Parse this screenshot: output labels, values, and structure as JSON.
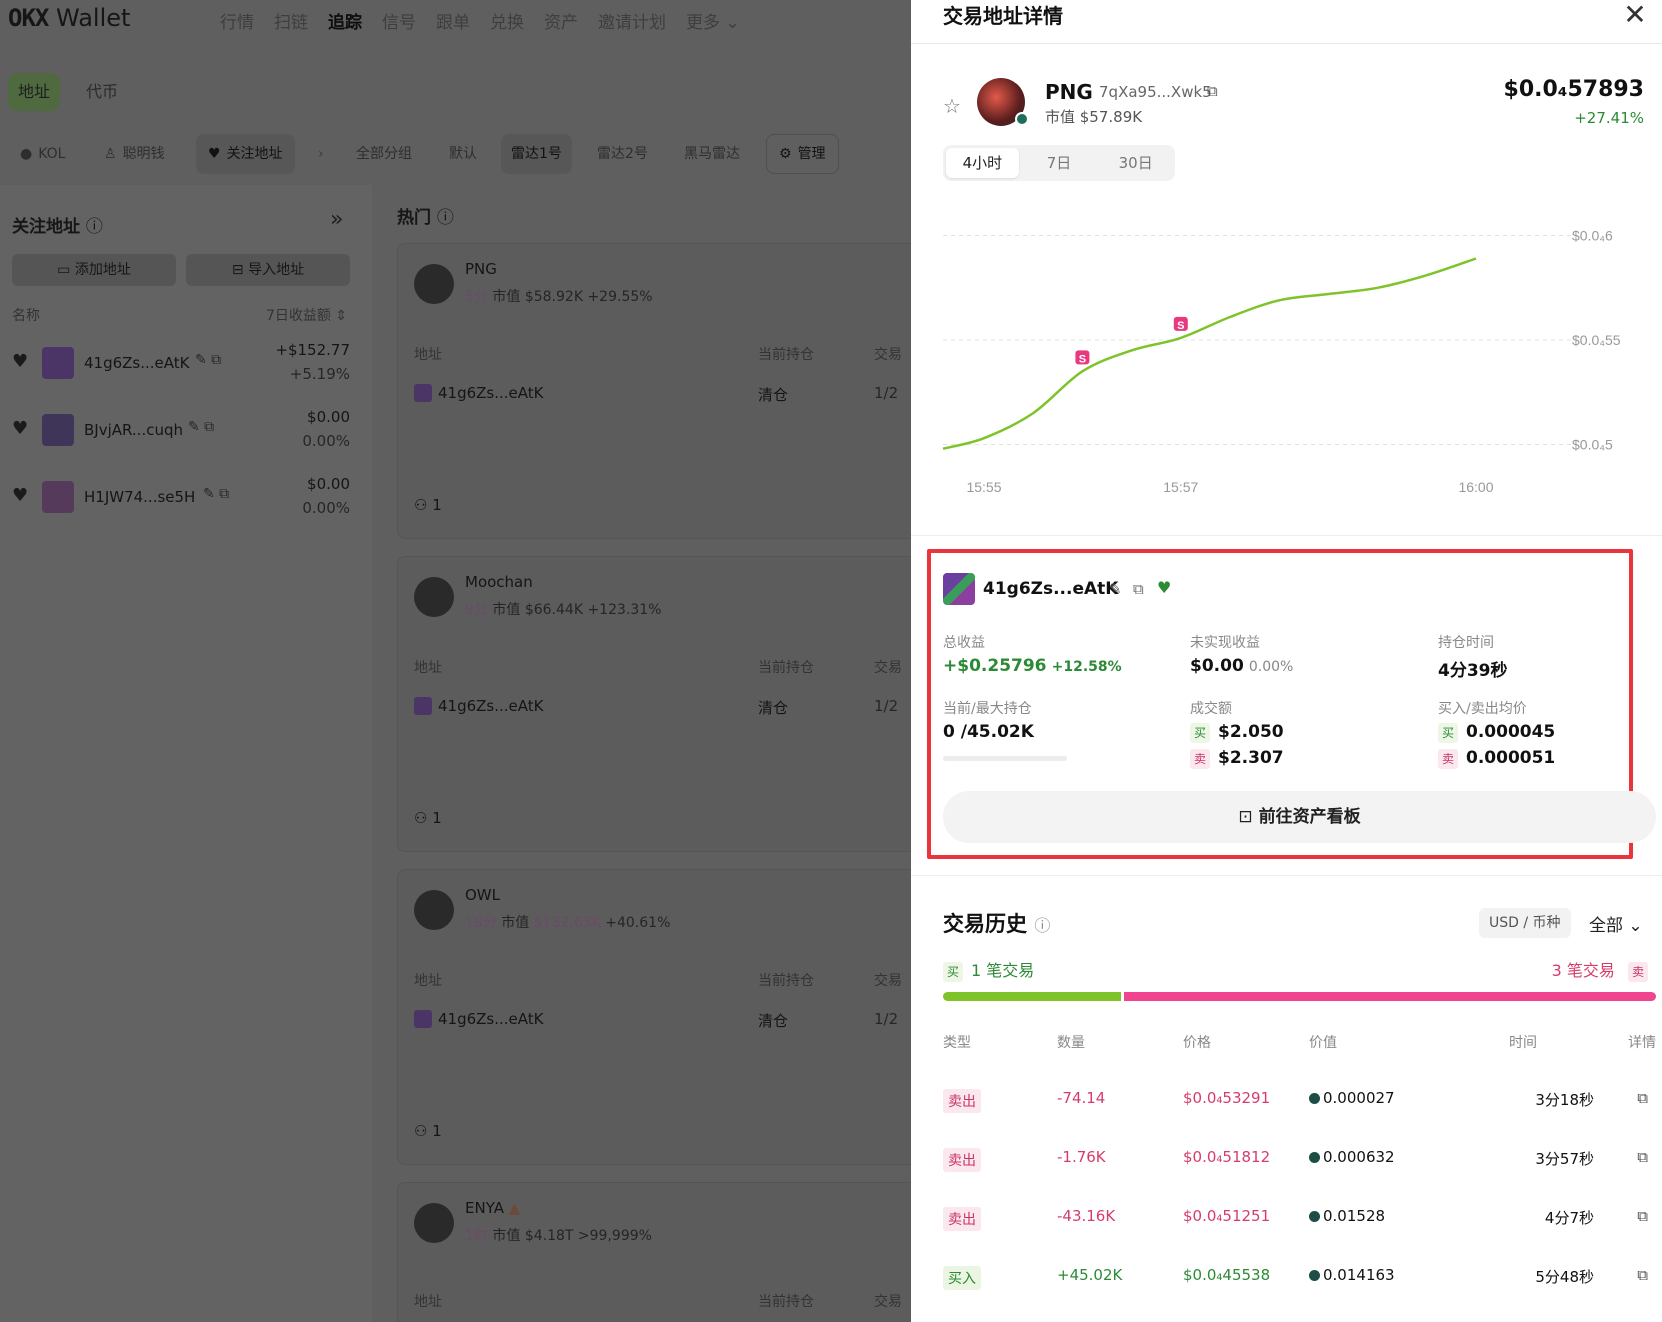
{
  "brand": {
    "logo_mark": "OKX",
    "logo_text": "Wallet"
  },
  "nav": {
    "items": [
      "行情",
      "扫链",
      "追踪",
      "信号",
      "跟单",
      "兑换",
      "资产",
      "邀请计划",
      "更多"
    ],
    "active": "追踪"
  },
  "tabs": {
    "address": "地址",
    "token": "代币"
  },
  "filters": {
    "kol": "KOL",
    "smart": "聪明钱",
    "watch": "关注地址",
    "all_groups": "全部分组",
    "default": "默认",
    "radar1": "雷达1号",
    "radar2": "雷达2号",
    "dark_horse": "黑马雷达",
    "manage": "管理"
  },
  "sidebar": {
    "title": "关注地址",
    "add": "添加地址",
    "import": "导入地址",
    "col_name": "名称",
    "col_profit": "7日收益额",
    "items": [
      {
        "addr": "41g6Zs...eAtK",
        "pnl": "+$152.77",
        "pct": "+5.19%"
      },
      {
        "addr": "BJvjAR...cuqh",
        "pnl": "$0.00",
        "pct": "0.00%"
      },
      {
        "addr": "H1JW74...se5H",
        "pnl": "$0.00",
        "pct": "0.00%"
      }
    ]
  },
  "hot": {
    "title": "热门",
    "col_addr": "地址",
    "col_hold": "当前持仓",
    "col_trade": "交易",
    "cards": [
      {
        "name": "PNG",
        "age": "5分",
        "mcap_label": "市值",
        "mcap": "$58.92K",
        "chg": "+29.55%",
        "addr": "41g6Zs...eAtK",
        "hold": "清仓",
        "trade": "1/2",
        "count": "1"
      },
      {
        "name": "Moochan",
        "age": "9分",
        "mcap_label": "市值",
        "mcap": "$66.44K",
        "chg": "+123.31%",
        "addr": "41g6Zs...eAtK",
        "hold": "清仓",
        "trade": "1/2",
        "count": "1"
      },
      {
        "name": "OWL",
        "age": "18分",
        "mcap_label": "市值",
        "mcap": "$132.63K",
        "chg": "+40.61%",
        "addr": "41g6Zs...eAtK",
        "hold": "清仓",
        "trade": "1/2",
        "count": "1"
      },
      {
        "name": "ENYA",
        "age": "1时",
        "mcap_label": "市值",
        "mcap": "$4.18T",
        "chg": ">99,999%",
        "addr": "",
        "hold": "",
        "trade": "",
        "count": ""
      }
    ]
  },
  "panel": {
    "title": "交易地址详情",
    "token": {
      "symbol": "PNG",
      "address": "7qXa95...Xwk5",
      "mcap": "市值 $57.89K",
      "price": "$0.0₄57893",
      "change": "+27.41%"
    },
    "ranges": [
      "4小时",
      "7日",
      "30日"
    ],
    "active_range": "4小时",
    "wallet": {
      "addr": "41g6Zs...eAtK",
      "total_label": "总收益",
      "total_value": "+$0.25796",
      "total_pct": "+12.58%",
      "unreal_label": "未实现收益",
      "unreal_value": "$0.00",
      "unreal_pct": "0.00%",
      "hold_time_label": "持仓时间",
      "hold_time": "4分39秒",
      "position_label": "当前/最大持仓",
      "position": "0 /45.02K",
      "volume_label": "成交额",
      "buy_vol": "$2.050",
      "sell_vol": "$2.307",
      "avg_label": "买入/卖出均价",
      "buy_avg": "0.000045",
      "sell_avg": "0.000051",
      "buy_tag": "买",
      "sell_tag": "卖",
      "dashboard": "前往资产看板"
    },
    "history": {
      "title": "交易历史",
      "unit": "USD / 币种",
      "filter": "全部",
      "buy_tag": "买",
      "sell_tag": "卖",
      "buy_count": "1 笔交易",
      "sell_count": "3 笔交易",
      "buy_share": 0.25,
      "cols": [
        "类型",
        "数量",
        "价格",
        "价值",
        "时间",
        "详情"
      ],
      "rows": [
        {
          "type": "卖出",
          "side": "s",
          "qty": "-74.14",
          "price": "$0.0₄53291",
          "value": "0.000027",
          "time": "3分18秒"
        },
        {
          "type": "卖出",
          "side": "s",
          "qty": "-1.76K",
          "price": "$0.0₄51812",
          "value": "0.000632",
          "time": "3分57秒"
        },
        {
          "type": "卖出",
          "side": "s",
          "qty": "-43.16K",
          "price": "$0.0₄51251",
          "value": "0.01528",
          "time": "4分7秒"
        },
        {
          "type": "买入",
          "side": "b",
          "qty": "+45.02K",
          "price": "$0.0₄45538",
          "value": "0.014163",
          "time": "5分48秒"
        }
      ]
    }
  },
  "chart_data": {
    "type": "line",
    "x": [
      "15:54:35",
      "15:55",
      "15:55:30",
      "15:56",
      "15:56:30",
      "15:57",
      "15:57:30",
      "15:58",
      "15:58:30",
      "15:59",
      "15:59:30",
      "16:00"
    ],
    "values": [
      4.98e-05,
      5.03e-05,
      5.15e-05,
      5.35e-05,
      5.45e-05,
      5.51e-05,
      5.61e-05,
      5.69e-05,
      5.72e-05,
      5.75e-05,
      5.81e-05,
      5.89e-05
    ],
    "x_ticks": [
      "15:55",
      "15:57",
      "16:00"
    ],
    "y_ticks": [
      "$0.0₄6",
      "$0.0₄55",
      "$0.0₄5"
    ],
    "y_tick_values": [
      6e-05,
      5.5e-05,
      5e-05
    ],
    "ylim": [
      4.83e-05,
      6.17e-05
    ],
    "markers": [
      {
        "x": "15:56",
        "label": "S"
      },
      {
        "x": "15:57",
        "label": "S"
      }
    ],
    "grid": true,
    "color": "#7fc32b"
  }
}
